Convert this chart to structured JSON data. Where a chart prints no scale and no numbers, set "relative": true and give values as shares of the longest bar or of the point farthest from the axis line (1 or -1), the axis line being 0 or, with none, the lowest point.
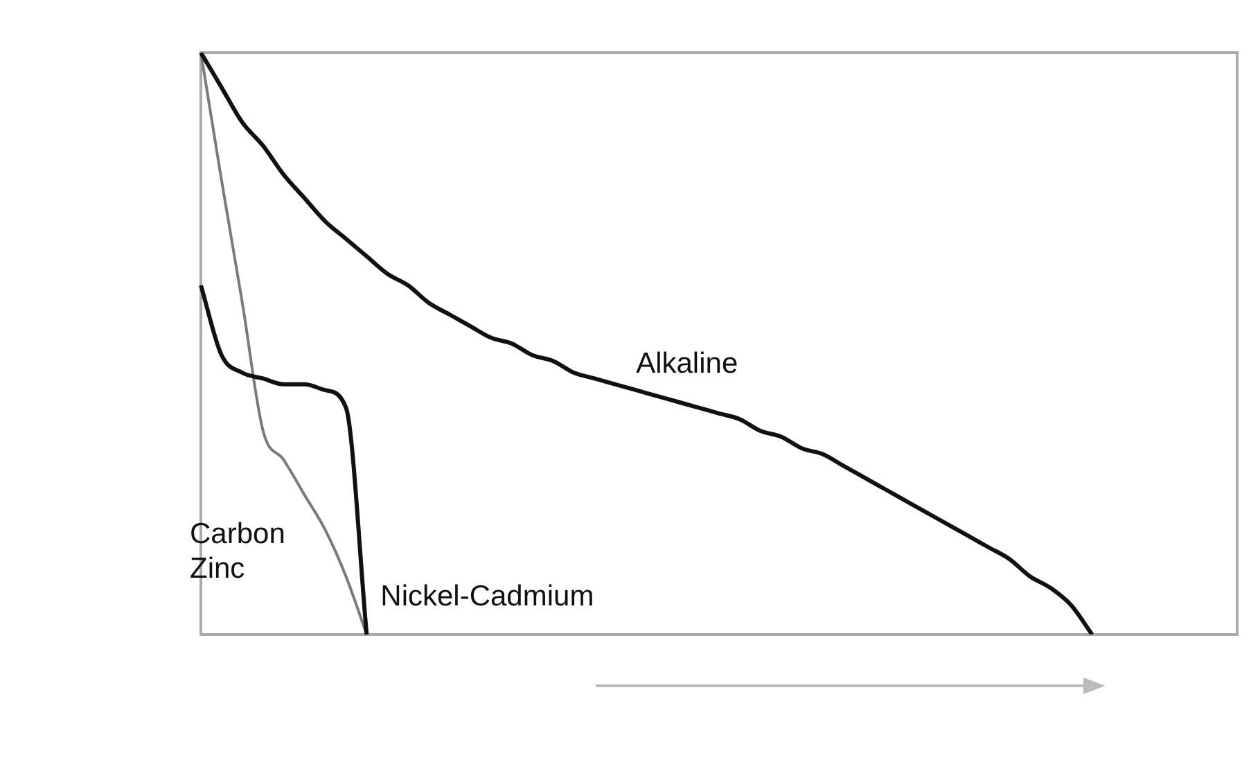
{
  "chart_data": {
    "type": "line",
    "relative": true,
    "marker": "none",
    "categories": [
      null,
      null,
      null,
      null,
      null,
      null,
      null,
      null,
      null,
      null,
      null,
      null,
      null,
      null,
      null,
      null,
      null,
      null,
      null,
      null,
      null,
      null,
      null,
      null,
      null,
      null,
      null,
      null,
      null,
      null,
      null,
      null,
      null,
      null,
      null,
      null,
      null,
      null,
      null,
      null,
      null,
      null,
      null,
      null,
      null,
      null,
      null,
      null,
      null,
      null,
      null
    ],
    "series": [
      {
        "name": "Alkaline",
        "color": "#111111",
        "values": [
          1.0,
          0.94,
          0.88,
          0.84,
          0.79,
          0.75,
          0.71,
          0.68,
          0.65,
          0.62,
          0.6,
          0.57,
          0.55,
          0.53,
          0.51,
          0.5,
          0.48,
          0.47,
          0.45,
          0.44,
          0.43,
          0.42,
          0.41,
          0.4,
          0.39,
          0.38,
          0.37,
          0.35,
          0.34,
          0.32,
          0.31,
          0.29,
          0.27,
          0.25,
          0.23,
          0.21,
          0.19,
          0.17,
          0.15,
          0.13,
          0.1,
          0.08,
          0.05,
          0,
          null,
          null,
          null,
          null,
          null,
          null,
          null
        ]
      },
      {
        "name": "Nickel-Cadmium",
        "color": "#111111",
        "values": [
          0.6,
          0.48,
          0.45,
          0.44,
          0.43,
          0.43,
          0.42,
          0.39,
          0,
          null,
          null,
          null,
          null,
          null,
          null,
          null,
          null,
          null,
          null,
          null,
          null,
          null,
          null,
          null,
          null,
          null,
          null,
          null,
          null,
          null,
          null,
          null,
          null,
          null,
          null,
          null,
          null,
          null,
          null,
          null,
          null,
          null,
          null,
          null,
          null,
          null,
          null,
          null,
          null,
          null,
          null
        ]
      },
      {
        "name": "Carbon Zinc",
        "color": "#7a7a7a",
        "values": [
          1.0,
          0.78,
          0.57,
          0.35,
          0.3,
          0.24,
          0.18,
          0.1,
          0,
          null,
          null,
          null,
          null,
          null,
          null,
          null,
          null,
          null,
          null,
          null,
          null,
          null,
          null,
          null,
          null,
          null,
          null,
          null,
          null,
          null,
          null,
          null,
          null,
          null,
          null,
          null,
          null,
          null,
          null,
          null,
          null,
          null,
          null,
          null,
          null,
          null,
          null,
          null,
          null,
          null,
          null
        ]
      }
    ]
  }
}
